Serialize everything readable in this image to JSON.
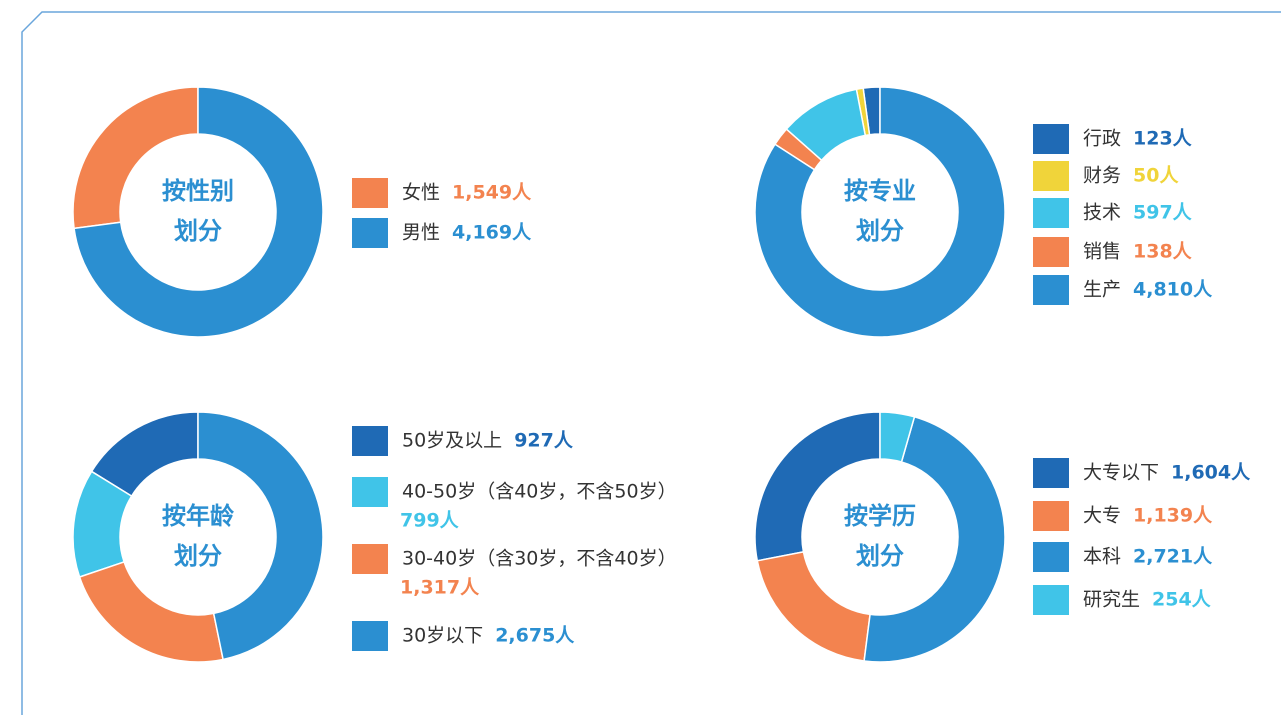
{
  "chart_data": [
    {
      "type": "pie",
      "title": [
        "按性别",
        "划分"
      ],
      "categories": [
        "女性",
        "男性"
      ],
      "values": [
        1549,
        4169
      ],
      "value_labels": [
        "1,549人",
        "4,169人"
      ],
      "colors": [
        "#f3834f",
        "#2b8fd1"
      ]
    },
    {
      "type": "pie",
      "title": [
        "按专业",
        "划分"
      ],
      "categories": [
        "行政",
        "财务",
        "技术",
        "销售",
        "生产"
      ],
      "values": [
        123,
        50,
        597,
        138,
        4810
      ],
      "value_labels": [
        "123人",
        "50人",
        "597人",
        "138人",
        "4,810人"
      ],
      "colors": [
        "#1f6ab5",
        "#f0d43a",
        "#40c4e8",
        "#f3834f",
        "#2b8fd1"
      ]
    },
    {
      "type": "pie",
      "title": [
        "按年龄",
        "划分"
      ],
      "categories": [
        "50岁及以上",
        "40-50岁（含40岁，不含50岁）",
        "30-40岁（含30岁，不含40岁）",
        "30岁以下"
      ],
      "values": [
        927,
        799,
        1317,
        2675
      ],
      "value_labels": [
        "927人",
        "799人",
        "1,317人",
        "2,675人"
      ],
      "colors": [
        "#1f6ab5",
        "#40c4e8",
        "#f3834f",
        "#2b8fd1"
      ]
    },
    {
      "type": "pie",
      "title": [
        "按学历",
        "划分"
      ],
      "categories": [
        "大专以下",
        "大专",
        "本科",
        "研究生"
      ],
      "values": [
        1604,
        1139,
        2721,
        254
      ],
      "value_labels": [
        "1,604人",
        "1,139人",
        "2,721人",
        "254人"
      ],
      "colors": [
        "#1f6ab5",
        "#f3834f",
        "#2b8fd1",
        "#40c4e8"
      ]
    }
  ]
}
